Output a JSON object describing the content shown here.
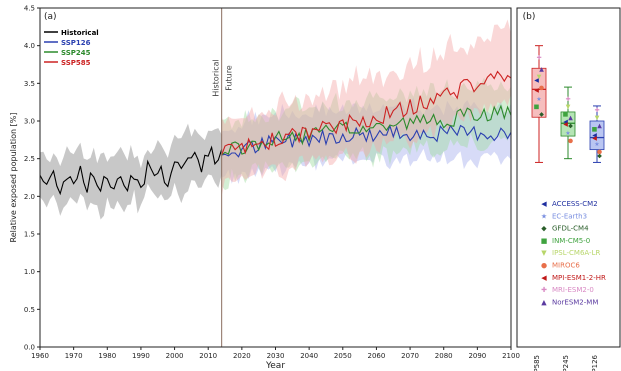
{
  "chart_data": [
    {
      "type": "line",
      "panel_label": "(a)",
      "title": "",
      "xlabel": "Year",
      "ylabel": "Relative exposed population [%]",
      "xlim": [
        1960,
        2100
      ],
      "ylim": [
        0.0,
        4.5
      ],
      "xticks": [
        1960,
        1970,
        1980,
        1990,
        2000,
        2010,
        2020,
        2030,
        2040,
        2050,
        2060,
        2070,
        2080,
        2090,
        2100
      ],
      "yticks": [
        0.0,
        0.5,
        1.0,
        1.5,
        2.0,
        2.5,
        3.0,
        3.5,
        4.0,
        4.5
      ],
      "grid": false,
      "legend_position": "top-left",
      "divider_year": 2014,
      "divider_labels": [
        "Historical",
        "Future"
      ],
      "series": [
        {
          "name": "Historical",
          "color": "#000000",
          "band_color": "#b5b5b5",
          "x_start": 1960,
          "x_end": 2014,
          "keypoints": [
            [
              1960,
              2.28
            ],
            [
              1962,
              2.14
            ],
            [
              1964,
              2.3
            ],
            [
              1966,
              2.12
            ],
            [
              1968,
              2.3
            ],
            [
              1970,
              2.2
            ],
            [
              1972,
              2.38
            ],
            [
              1974,
              2.15
            ],
            [
              1976,
              2.27
            ],
            [
              1978,
              2.12
            ],
            [
              1980,
              2.22
            ],
            [
              1982,
              2.15
            ],
            [
              1984,
              2.27
            ],
            [
              1986,
              2.18
            ],
            [
              1988,
              2.3
            ],
            [
              1990,
              2.12
            ],
            [
              1992,
              2.4
            ],
            [
              1994,
              2.28
            ],
            [
              1996,
              2.35
            ],
            [
              1998,
              2.2
            ],
            [
              2000,
              2.45
            ],
            [
              2002,
              2.38
            ],
            [
              2004,
              2.5
            ],
            [
              2006,
              2.55
            ],
            [
              2008,
              2.42
            ],
            [
              2010,
              2.6
            ],
            [
              2012,
              2.5
            ],
            [
              2014,
              2.55
            ]
          ],
          "band_spread": 0.33
        },
        {
          "name": "SSP126",
          "color": "#2a3fb0",
          "band_color": "#a7b0ee",
          "x_start": 2014,
          "x_end": 2100,
          "keypoints": [
            [
              2014,
              2.55
            ],
            [
              2020,
              2.62
            ],
            [
              2030,
              2.72
            ],
            [
              2040,
              2.78
            ],
            [
              2050,
              2.82
            ],
            [
              2060,
              2.82
            ],
            [
              2070,
              2.85
            ],
            [
              2080,
              2.83
            ],
            [
              2090,
              2.85
            ],
            [
              2100,
              2.82
            ]
          ],
          "band_spread": 0.35
        },
        {
          "name": "SSP245",
          "color": "#2c8a2c",
          "band_color": "#9fdb9f",
          "x_start": 2014,
          "x_end": 2100,
          "keypoints": [
            [
              2014,
              2.55
            ],
            [
              2020,
              2.65
            ],
            [
              2030,
              2.75
            ],
            [
              2040,
              2.82
            ],
            [
              2050,
              2.88
            ],
            [
              2060,
              2.92
            ],
            [
              2070,
              2.98
            ],
            [
              2080,
              3.02
            ],
            [
              2090,
              3.08
            ],
            [
              2100,
              3.12
            ]
          ],
          "band_spread": 0.37
        },
        {
          "name": "SSP585",
          "color": "#cc2222",
          "band_color": "#f4a9a9",
          "x_start": 2014,
          "x_end": 2100,
          "keypoints": [
            [
              2014,
              2.55
            ],
            [
              2020,
              2.65
            ],
            [
              2030,
              2.75
            ],
            [
              2040,
              2.85
            ],
            [
              2050,
              2.95
            ],
            [
              2060,
              3.05
            ],
            [
              2070,
              3.18
            ],
            [
              2080,
              3.35
            ],
            [
              2090,
              3.5
            ],
            [
              2100,
              3.65
            ]
          ],
          "band_spread": 0.42
        }
      ]
    },
    {
      "type": "box",
      "panel_label": "(b)",
      "categories": [
        "SSP585",
        "SSP245",
        "SSP126"
      ],
      "ylim": [
        0.0,
        4.5
      ],
      "boxes": [
        {
          "name": "SSP585",
          "color": "#cc2222",
          "fill": "#f5b3b3",
          "min": 2.45,
          "q1": 3.05,
          "median": 3.42,
          "q3": 3.7,
          "max": 4.0
        },
        {
          "name": "SSP245",
          "color": "#2c8a2c",
          "fill": "#a8e0a8",
          "min": 2.5,
          "q1": 2.8,
          "median": 2.97,
          "q3": 3.12,
          "max": 3.45
        },
        {
          "name": "SSP126",
          "color": "#2a3fb0",
          "fill": "#aebcf0",
          "min": 2.45,
          "q1": 2.62,
          "median": 2.78,
          "q3": 3.0,
          "max": 3.2
        }
      ],
      "models": [
        {
          "name": "ACCESS-CM2",
          "color": "#1f2fa0",
          "marker": "◀",
          "values": [
            3.55,
            3.0,
            2.82
          ]
        },
        {
          "name": "EC-Earth3",
          "color": "#7a8fe0",
          "marker": "★",
          "values": [
            3.3,
            2.85,
            2.7
          ]
        },
        {
          "name": "GFDL-CM4",
          "color": "#2a5e2a",
          "marker": "◆",
          "values": [
            3.1,
            2.95,
            2.55
          ]
        },
        {
          "name": "INM-CM5-0",
          "color": "#3fa33f",
          "marker": "■",
          "values": [
            3.2,
            3.1,
            2.9
          ]
        },
        {
          "name": "IPSL-CM6A-LR",
          "color": "#b8d66a",
          "marker": "▼",
          "values": [
            3.6,
            3.2,
            3.05
          ]
        },
        {
          "name": "MIROC6",
          "color": "#e86f4a",
          "marker": "●",
          "values": [
            3.45,
            2.75,
            2.6
          ]
        },
        {
          "name": "MPI-ESM1-2-HR",
          "color": "#c01818",
          "marker": "◀",
          "values": [
            3.42,
            2.97,
            2.78
          ]
        },
        {
          "name": "MRI-ESM2-0",
          "color": "#d98ac4",
          "marker": "✚",
          "values": [
            3.85,
            3.3,
            3.15
          ]
        },
        {
          "name": "NorESM2-MM",
          "color": "#5a3aa0",
          "marker": "▲",
          "values": [
            3.7,
            3.05,
            2.95
          ]
        }
      ]
    }
  ]
}
